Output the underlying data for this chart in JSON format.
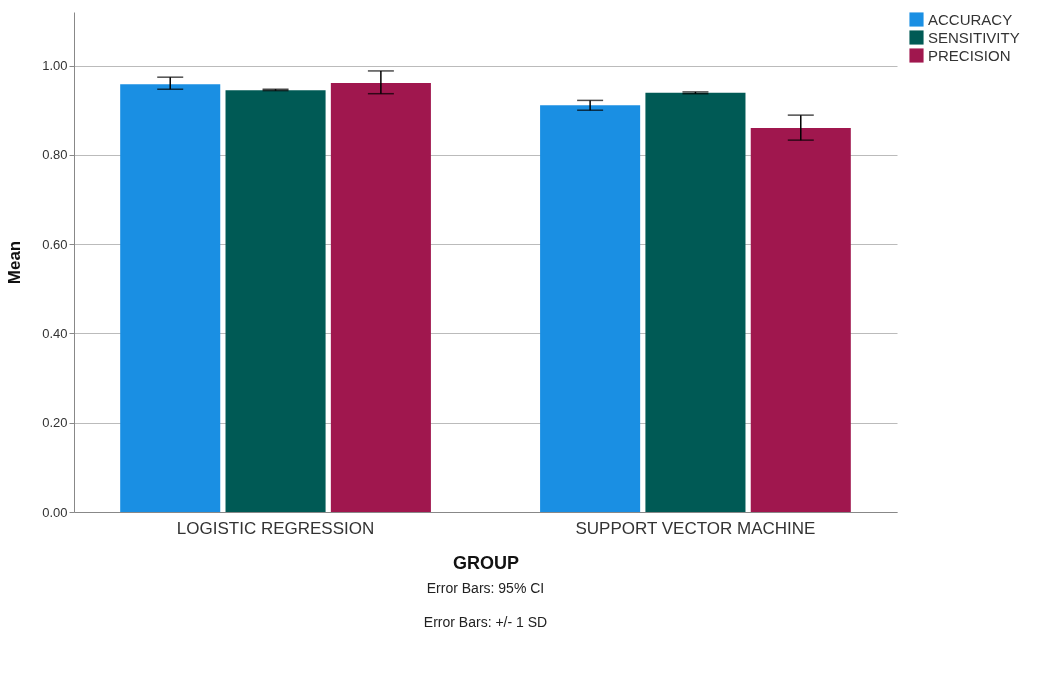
{
  "chart_data": {
    "type": "bar",
    "xlabel": "GROUP",
    "ylabel": "Mean",
    "categories": [
      "LOGISTIC REGRESSION",
      "SUPPORT VECTOR MACHINE"
    ],
    "series": [
      {
        "name": "ACCURACY",
        "color": "#1a8fe3",
        "values": [
          0.958,
          0.911
        ],
        "errors": [
          [
            0.947,
            0.974
          ],
          [
            0.9,
            0.922
          ]
        ]
      },
      {
        "name": "SENSITIVITY",
        "color": "#005a55",
        "values": [
          0.945,
          0.939
        ],
        "errors": [
          [
            0.944,
            0.947
          ],
          [
            0.937,
            0.941
          ]
        ]
      },
      {
        "name": "PRECISION",
        "color": "#a0174e",
        "values": [
          0.961,
          0.86
        ],
        "errors": [
          [
            0.937,
            0.988
          ],
          [
            0.833,
            0.889
          ]
        ]
      }
    ],
    "ylim": [
      0,
      1.12
    ],
    "yticks": [
      {
        "value": 0,
        "label": "0.00"
      },
      {
        "value": 0.2,
        "label": "0.20"
      },
      {
        "value": 0.4,
        "label": "0.40"
      },
      {
        "value": 0.6,
        "label": "0.60"
      },
      {
        "value": 0.8,
        "label": "0.80"
      },
      {
        "value": 1,
        "label": "1.00"
      }
    ],
    "grid": "y",
    "legend": "top right",
    "annotations": [
      "Error Bars: 95% CI",
      "Error Bars: +/- 1 SD"
    ]
  }
}
